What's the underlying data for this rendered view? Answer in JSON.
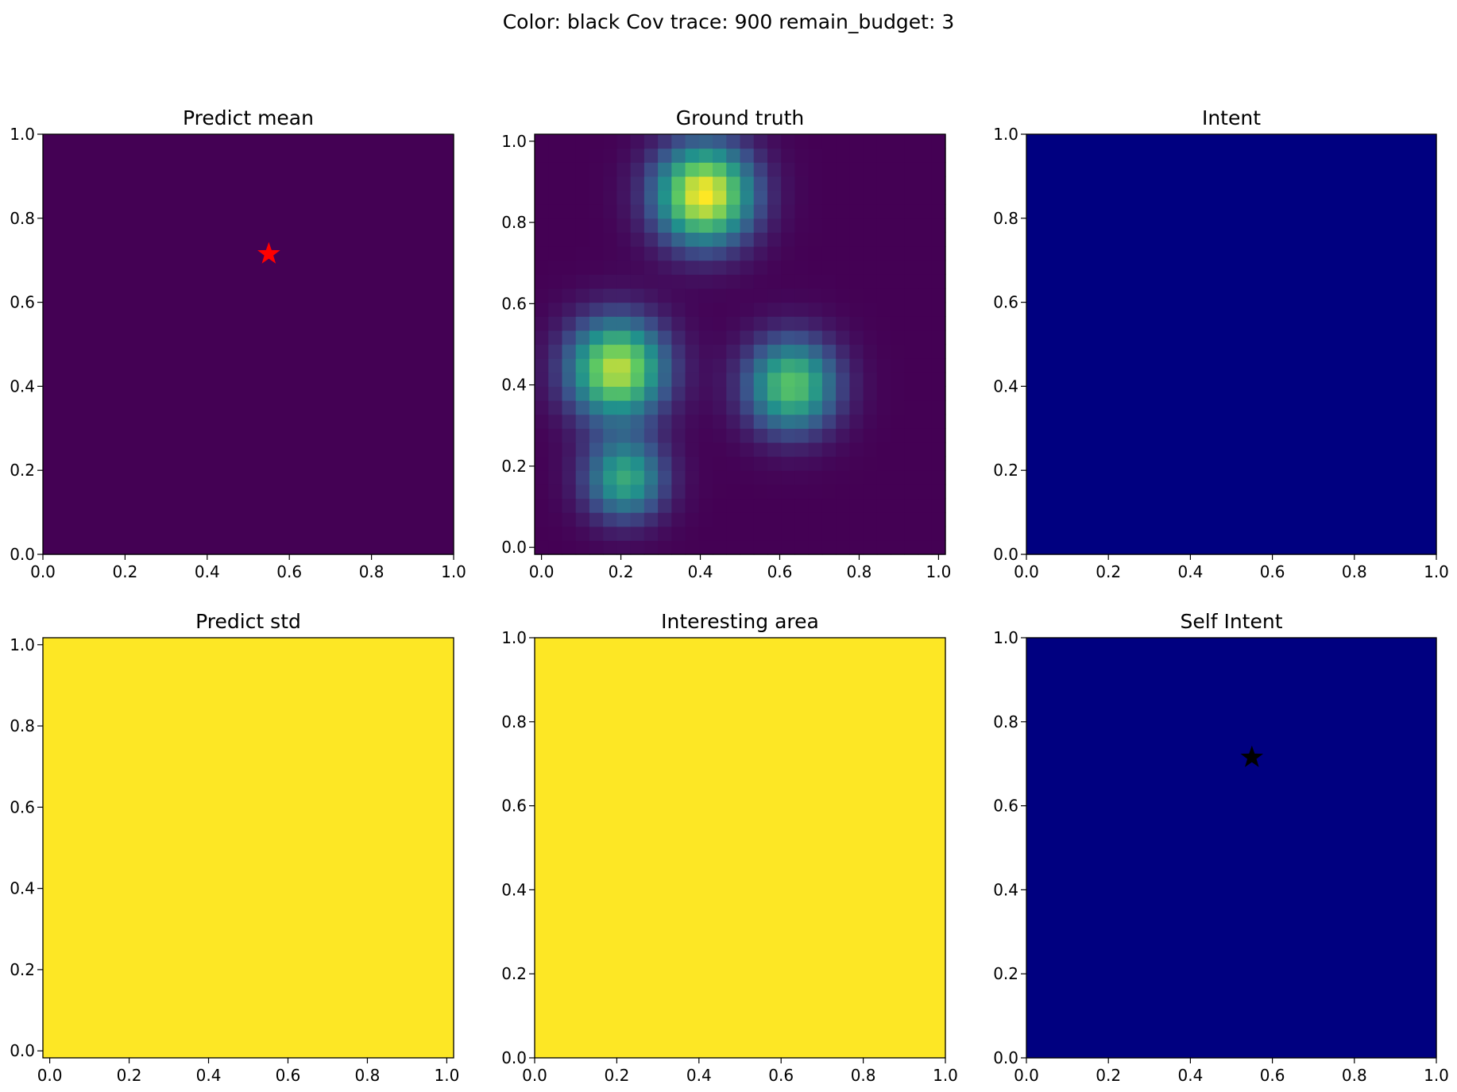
{
  "suptitle": "Color: black Cov trace: 900  remain_budget: 3",
  "chart_data": [
    {
      "type": "heatmap",
      "title": "Predict mean",
      "colormap": "viridis",
      "grid_size": [
        1,
        1
      ],
      "z": [
        [
          0.0
        ]
      ],
      "xlim": [
        0.0,
        1.0
      ],
      "ylim": [
        0.0,
        1.0
      ],
      "xticks": [
        "0.0",
        "0.2",
        "0.4",
        "0.6",
        "0.8",
        "1.0"
      ],
      "yticks": [
        "0.0",
        "0.2",
        "0.4",
        "0.6",
        "0.8",
        "1.0"
      ],
      "markers": [
        {
          "shape": "star",
          "x": 0.55,
          "y": 0.715,
          "color": "#ff0000"
        }
      ]
    },
    {
      "type": "heatmap",
      "title": "Ground truth",
      "colormap": "viridis",
      "grid_size": [
        30,
        30
      ],
      "extent": [
        -0.0172,
        1.0172,
        -0.0172,
        1.0172
      ],
      "peaks": [
        {
          "x": 0.41,
          "y": 0.87,
          "amp": 1.0,
          "sigma": 0.085
        },
        {
          "x": 0.19,
          "y": 0.44,
          "amp": 0.9,
          "sigma": 0.085
        },
        {
          "x": 0.63,
          "y": 0.4,
          "amp": 0.72,
          "sigma": 0.08
        },
        {
          "x": 0.21,
          "y": 0.17,
          "amp": 0.6,
          "sigma": 0.07
        }
      ],
      "xlim": [
        -0.0172,
        1.0172
      ],
      "ylim": [
        -0.0172,
        1.0172
      ],
      "xticks": [
        "0.0",
        "0.2",
        "0.4",
        "0.6",
        "0.8",
        "1.0"
      ],
      "yticks": [
        "0.0",
        "0.2",
        "0.4",
        "0.6",
        "0.8",
        "1.0"
      ]
    },
    {
      "type": "heatmap",
      "title": "Intent",
      "colormap": "jet",
      "grid_size": [
        1,
        1
      ],
      "z": [
        [
          0.0
        ]
      ],
      "xlim": [
        0.0,
        1.0
      ],
      "ylim": [
        0.0,
        1.0
      ],
      "xticks": [
        "0.0",
        "0.2",
        "0.4",
        "0.6",
        "0.8",
        "1.0"
      ],
      "yticks": [
        "0.0",
        "0.2",
        "0.4",
        "0.6",
        "0.8",
        "1.0"
      ]
    },
    {
      "type": "heatmap",
      "title": "Predict std",
      "colormap": "viridis",
      "grid_size": [
        1,
        1
      ],
      "z": [
        [
          1.0
        ]
      ],
      "xlim": [
        -0.0172,
        1.0172
      ],
      "ylim": [
        -0.0172,
        1.0172
      ],
      "xticks": [
        "0.0",
        "0.2",
        "0.4",
        "0.6",
        "0.8",
        "1.0"
      ],
      "yticks": [
        "0.0",
        "0.2",
        "0.4",
        "0.6",
        "0.8",
        "1.0"
      ]
    },
    {
      "type": "heatmap",
      "title": "Interesting area",
      "colormap": "viridis",
      "grid_size": [
        1,
        1
      ],
      "z": [
        [
          1.0
        ]
      ],
      "xlim": [
        0.0,
        1.0
      ],
      "ylim": [
        0.0,
        1.0
      ],
      "xticks": [
        "0.0",
        "0.2",
        "0.4",
        "0.6",
        "0.8",
        "1.0"
      ],
      "yticks": [
        "0.0",
        "0.2",
        "0.4",
        "0.6",
        "0.8",
        "1.0"
      ]
    },
    {
      "type": "heatmap",
      "title": "Self Intent",
      "colormap": "jet",
      "grid_size": [
        1,
        1
      ],
      "z": [
        [
          0.0
        ]
      ],
      "xlim": [
        0.0,
        1.0
      ],
      "ylim": [
        0.0,
        1.0
      ],
      "xticks": [
        "0.0",
        "0.2",
        "0.4",
        "0.6",
        "0.8",
        "1.0"
      ],
      "yticks": [
        "0.0",
        "0.2",
        "0.4",
        "0.6",
        "0.8",
        "1.0"
      ],
      "markers": [
        {
          "shape": "star",
          "x": 0.55,
          "y": 0.715,
          "color": "#000000"
        }
      ]
    }
  ]
}
